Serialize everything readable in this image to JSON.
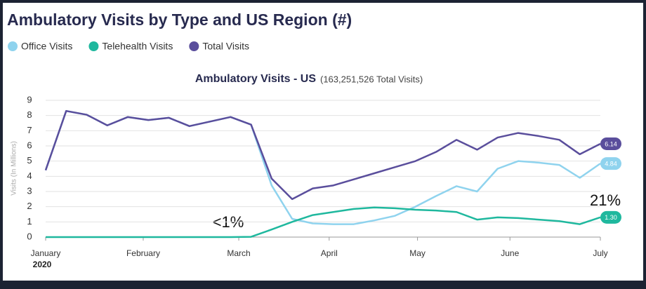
{
  "chart_data": {
    "type": "line",
    "title": "Ambulatory Visits by Type and US Region (#)",
    "subtitle": "Ambulatory Visits - US",
    "subtitle_note": "(163,251,526 Total Visits)",
    "y_label": "Visits (In Millions)",
    "x_year_label": "2020",
    "x": [
      0,
      1,
      2,
      3,
      4,
      5,
      6,
      7,
      8,
      9,
      10,
      11,
      12,
      13,
      14,
      15,
      16,
      17,
      18,
      19,
      20,
      21,
      22,
      23,
      24,
      25,
      26,
      27
    ],
    "xlim": [
      0,
      27
    ],
    "xticks": [
      {
        "value": 0,
        "label": "January"
      },
      {
        "value": 4.75,
        "label": "February"
      },
      {
        "value": 9.4,
        "label": "March"
      },
      {
        "value": 13.8,
        "label": "April"
      },
      {
        "value": 18.1,
        "label": "May"
      },
      {
        "value": 22.6,
        "label": "June"
      },
      {
        "value": 27,
        "label": "July"
      }
    ],
    "ylim": [
      0,
      9
    ],
    "yticks": [
      0,
      1,
      2,
      3,
      4,
      5,
      6,
      7,
      8,
      9
    ],
    "grid": true,
    "series": [
      {
        "name": "Office Visits",
        "color": "#8fd3ee",
        "end_label": "4.84",
        "values": [
          4.4,
          8.3,
          8.05,
          7.35,
          7.9,
          7.7,
          7.85,
          7.3,
          7.6,
          7.9,
          7.4,
          3.4,
          1.2,
          0.9,
          0.85,
          0.85,
          1.1,
          1.4,
          2.0,
          2.7,
          3.35,
          3.0,
          4.5,
          5.0,
          4.9,
          4.75,
          3.9,
          4.84
        ]
      },
      {
        "name": "Telehealth Visits",
        "color": "#1fb89e",
        "end_label": "1.30",
        "values": [
          0,
          0,
          0,
          0,
          0,
          0,
          0,
          0,
          0,
          0,
          0.02,
          0.5,
          1.0,
          1.45,
          1.65,
          1.85,
          1.95,
          1.9,
          1.8,
          1.75,
          1.65,
          1.15,
          1.3,
          1.25,
          1.15,
          1.05,
          0.85,
          1.3
        ]
      },
      {
        "name": "Total Visits",
        "color": "#5a4e9c",
        "end_label": "6.14",
        "values": [
          4.4,
          8.3,
          8.05,
          7.35,
          7.9,
          7.7,
          7.85,
          7.3,
          7.6,
          7.9,
          7.4,
          3.85,
          2.5,
          3.2,
          3.4,
          3.8,
          4.2,
          4.6,
          5.0,
          5.6,
          6.4,
          5.75,
          6.55,
          6.85,
          6.65,
          6.4,
          5.45,
          6.14
        ]
      }
    ],
    "annotations": [
      "<1%",
      "21%"
    ]
  }
}
